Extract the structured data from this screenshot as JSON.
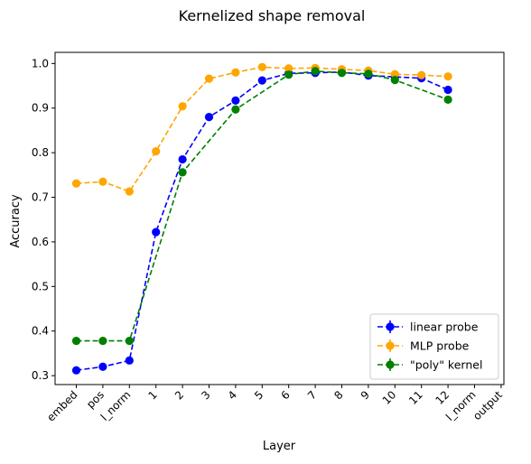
{
  "chart_data": {
    "type": "line",
    "title": "Kernelized shape removal",
    "xlabel": "Layer",
    "ylabel": "Accuracy",
    "categories": [
      "embed",
      "pos",
      "l_norm",
      "1",
      "2",
      "3",
      "4",
      "5",
      "6",
      "7",
      "8",
      "9",
      "10",
      "11",
      "12",
      "l_norm",
      "output"
    ],
    "ylim": [
      0.28,
      1.025
    ],
    "yticks": [
      0.3,
      0.4,
      0.5,
      0.6,
      0.7,
      0.8,
      0.9,
      1.0
    ],
    "ytick_labels": [
      "0.3",
      "0.4",
      "0.5",
      "0.6",
      "0.7",
      "0.8",
      "0.9",
      "1.0"
    ],
    "grid": false,
    "legend_position": "bottom-right",
    "series": [
      {
        "name": "linear probe",
        "color": "#0000ff",
        "values": [
          0.312,
          0.32,
          0.334,
          0.622,
          0.785,
          0.88,
          0.917,
          0.962,
          0.978,
          0.979,
          0.981,
          0.973,
          0.97,
          0.967,
          0.941,
          null,
          null
        ]
      },
      {
        "name": "MLP probe",
        "color": "#ffa500",
        "values": [
          0.731,
          0.735,
          0.713,
          0.803,
          0.904,
          0.966,
          0.98,
          0.992,
          0.989,
          0.99,
          0.987,
          0.984,
          0.976,
          0.974,
          0.971,
          null,
          null
        ]
      },
      {
        "name": "\"poly\" kernel",
        "color": "#008000",
        "values": [
          0.378,
          0.378,
          0.378,
          null,
          0.756,
          null,
          0.897,
          null,
          0.975,
          0.983,
          0.979,
          0.977,
          0.963,
          null,
          0.919,
          null,
          null
        ]
      }
    ]
  }
}
